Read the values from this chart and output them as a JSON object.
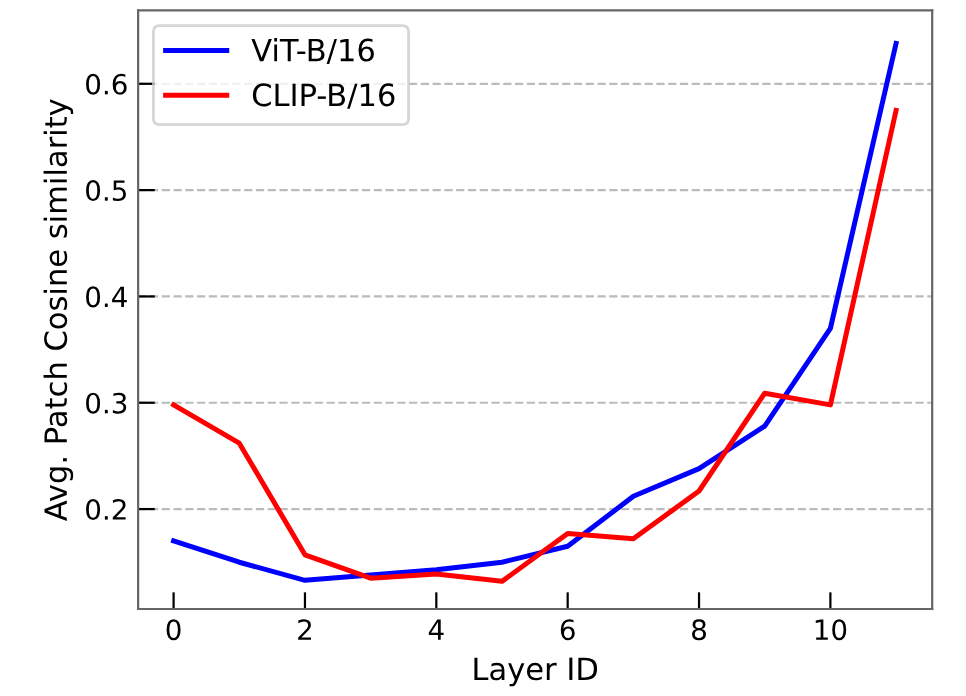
{
  "chart_data": {
    "type": "line",
    "xlabel": "Layer ID",
    "ylabel": "Avg. Patch Cosine similarity",
    "x": [
      0,
      1,
      2,
      3,
      4,
      5,
      6,
      7,
      8,
      9,
      10,
      11
    ],
    "series": [
      {
        "name": "ViT-B/16",
        "color": "#0000ff",
        "values": [
          0.17,
          0.15,
          0.133,
          0.138,
          0.143,
          0.15,
          0.165,
          0.212,
          0.238,
          0.278,
          0.37,
          0.638
        ]
      },
      {
        "name": "CLIP-B/16",
        "color": "#ff0000",
        "values": [
          0.298,
          0.262,
          0.157,
          0.135,
          0.139,
          0.132,
          0.177,
          0.172,
          0.217,
          0.309,
          0.298,
          0.575
        ]
      }
    ],
    "xlim": [
      -0.54,
      11.55
    ],
    "ylim": [
      0.106,
      0.669
    ],
    "xticks": [
      0,
      2,
      4,
      6,
      8,
      10
    ],
    "yticks": [
      0.2,
      0.3,
      0.4,
      0.5,
      0.6
    ],
    "grid": "y",
    "legend": "top left",
    "marker": "none",
    "line_style": "solid"
  }
}
